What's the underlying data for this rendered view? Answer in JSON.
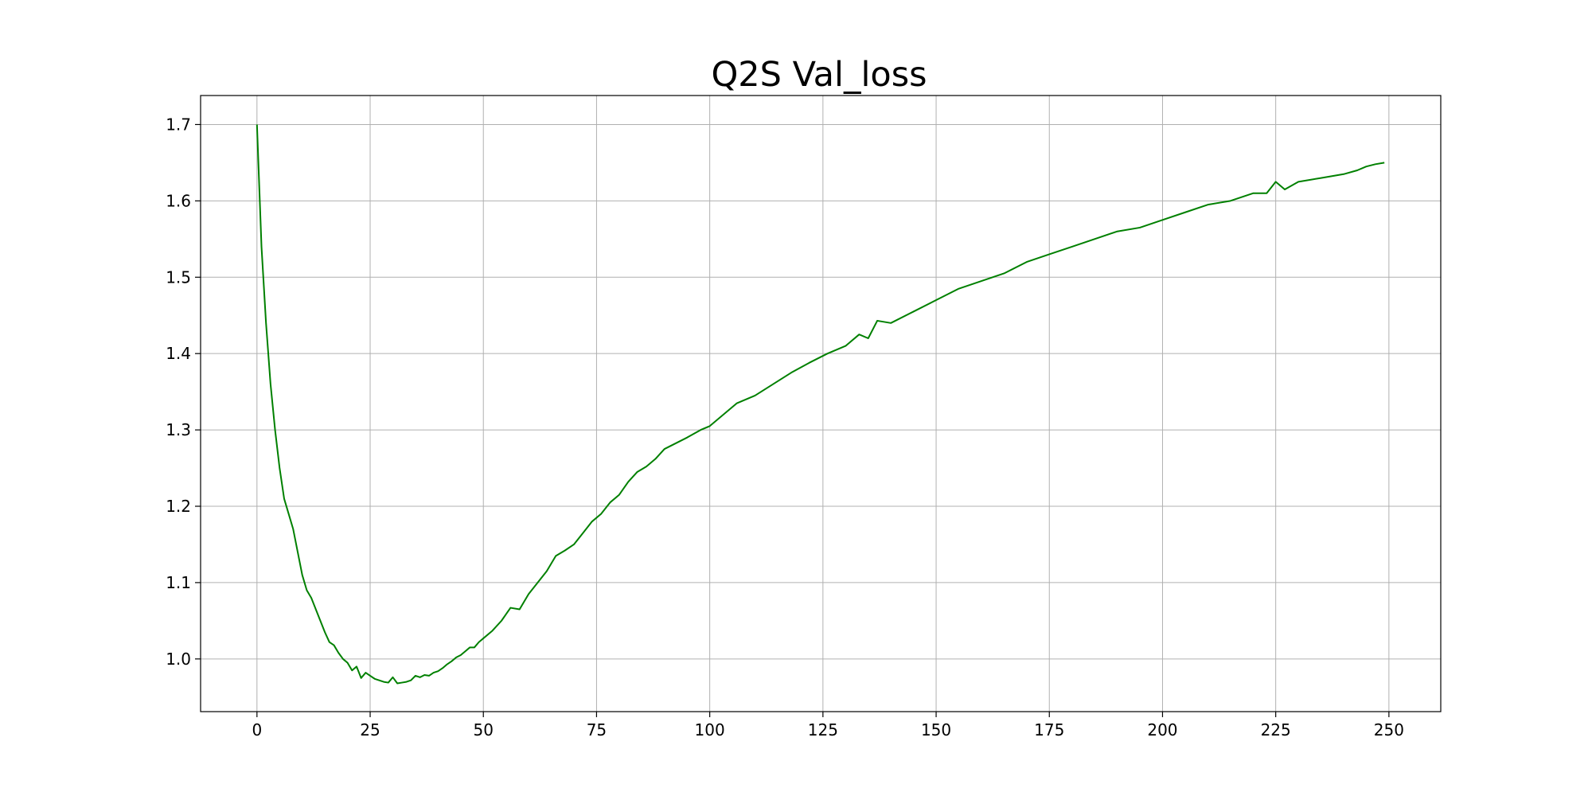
{
  "chart_data": {
    "type": "line",
    "title": "Q2S Val_loss",
    "xlabel": "",
    "ylabel": "",
    "xlim": [
      -12.45,
      261.45
    ],
    "ylim": [
      0.931,
      1.738
    ],
    "x_ticks": [
      0,
      25,
      50,
      75,
      100,
      125,
      150,
      175,
      200,
      225,
      250
    ],
    "y_ticks": [
      1.0,
      1.1,
      1.2,
      1.3,
      1.4,
      1.5,
      1.6,
      1.7
    ],
    "x_tick_labels": [
      "0",
      "25",
      "50",
      "75",
      "100",
      "125",
      "150",
      "175",
      "200",
      "225",
      "250"
    ],
    "y_tick_labels": [
      "1.0",
      "1.1",
      "1.2",
      "1.3",
      "1.4",
      "1.5",
      "1.6",
      "1.7"
    ],
    "grid": true,
    "line_color": "#008000",
    "series": [
      {
        "x": [
          0,
          1,
          2,
          3,
          4,
          5,
          6,
          7,
          8,
          9,
          10,
          11,
          12,
          13,
          14,
          15,
          16,
          17,
          18,
          19,
          20,
          21,
          22,
          23,
          24,
          25,
          26,
          27,
          28,
          29,
          30,
          31,
          32,
          33,
          34,
          35,
          36,
          37,
          38,
          39,
          40,
          41,
          42,
          43,
          44,
          45,
          46,
          47,
          48,
          49,
          50,
          52,
          54,
          56,
          58,
          60,
          62,
          64,
          66,
          68,
          70,
          72,
          74,
          76,
          78,
          80,
          82,
          84,
          86,
          88,
          90,
          95,
          98,
          100,
          103,
          106,
          110,
          114,
          118,
          122,
          126,
          130,
          133,
          135,
          137,
          140,
          145,
          150,
          155,
          160,
          165,
          170,
          175,
          180,
          185,
          190,
          195,
          200,
          205,
          210,
          215,
          220,
          223,
          225,
          227,
          230,
          235,
          240,
          243,
          245,
          247,
          249
        ],
        "values": [
          1.7,
          1.54,
          1.44,
          1.36,
          1.3,
          1.25,
          1.21,
          1.19,
          1.17,
          1.14,
          1.11,
          1.09,
          1.08,
          1.065,
          1.05,
          1.035,
          1.022,
          1.018,
          1.008,
          1.0,
          0.995,
          0.985,
          0.99,
          0.975,
          0.982,
          0.978,
          0.974,
          0.972,
          0.97,
          0.969,
          0.976,
          0.968,
          0.969,
          0.97,
          0.972,
          0.978,
          0.976,
          0.979,
          0.978,
          0.982,
          0.984,
          0.988,
          0.993,
          0.997,
          1.002,
          1.005,
          1.01,
          1.015,
          1.015,
          1.022,
          1.027,
          1.037,
          1.05,
          1.067,
          1.065,
          1.085,
          1.1,
          1.115,
          1.135,
          1.142,
          1.15,
          1.165,
          1.18,
          1.19,
          1.205,
          1.215,
          1.232,
          1.245,
          1.252,
          1.262,
          1.275,
          1.29,
          1.3,
          1.305,
          1.32,
          1.335,
          1.345,
          1.36,
          1.375,
          1.388,
          1.4,
          1.41,
          1.425,
          1.42,
          1.443,
          1.44,
          1.455,
          1.47,
          1.485,
          1.495,
          1.505,
          1.52,
          1.53,
          1.54,
          1.55,
          1.56,
          1.565,
          1.575,
          1.585,
          1.595,
          1.6,
          1.61,
          1.61,
          1.625,
          1.615,
          1.625,
          1.63,
          1.635,
          1.64,
          1.645,
          1.648,
          1.65
        ]
      }
    ]
  }
}
